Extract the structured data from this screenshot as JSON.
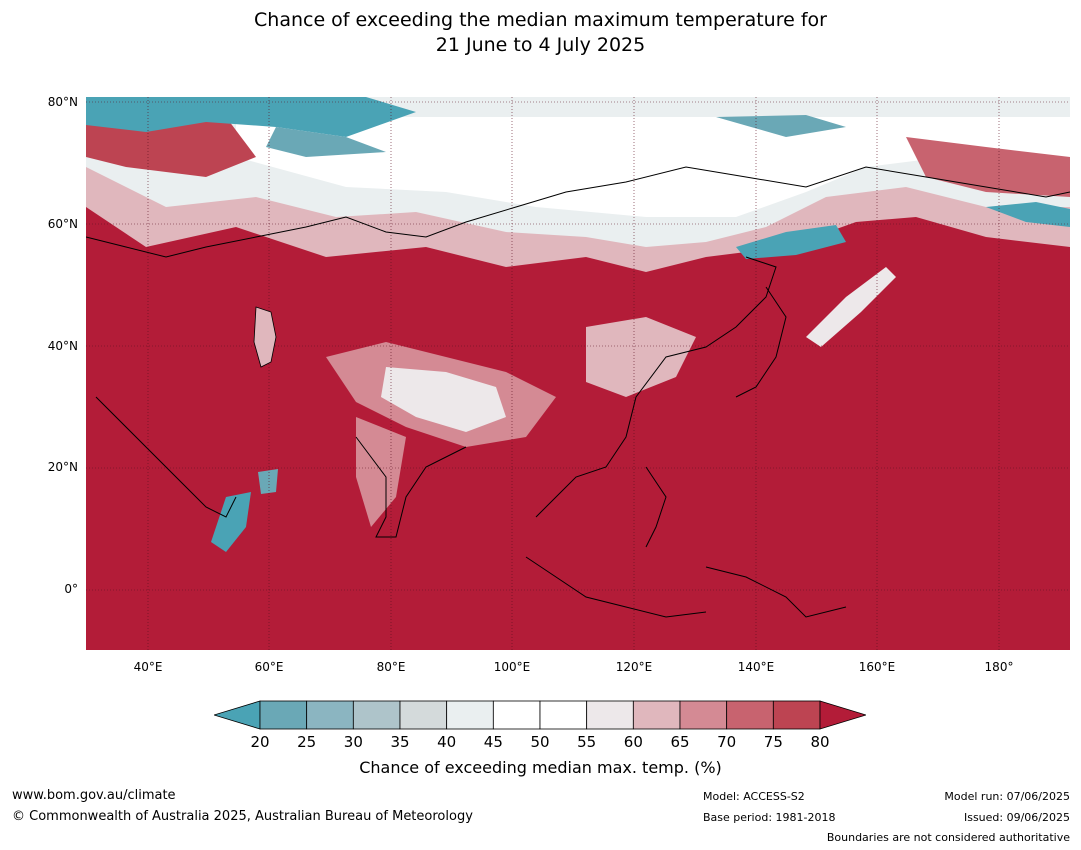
{
  "title_line1": "Chance of exceeding the median maximum temperature for",
  "title_line2": "21 June to 4 July 2025",
  "latitude_labels": [
    "80°N",
    "60°N",
    "40°N",
    "20°N",
    "0°"
  ],
  "longitude_labels": [
    "40°E",
    "60°E",
    "80°E",
    "100°E",
    "120°E",
    "140°E",
    "160°E",
    "180°"
  ],
  "colorbar": {
    "ticks": [
      "20",
      "25",
      "30",
      "35",
      "40",
      "45",
      "50",
      "55",
      "60",
      "65",
      "70",
      "75",
      "80"
    ],
    "colors": [
      "#4aa3b5",
      "#6aa8b6",
      "#8bb5c1",
      "#aec4ca",
      "#d4dadb",
      "#eaeff0",
      "#ffffff",
      "#ffffff",
      "#ede8ea",
      "#e0b7bd",
      "#d48a94",
      "#c8636f",
      "#bd4452",
      "#b31c38"
    ],
    "label": "Chance of exceeding median max. temp. (%)"
  },
  "footer": {
    "url": "www.bom.gov.au/climate",
    "copyright": "© Commonwealth of Australia 2025, Australian Bureau of Meteorology",
    "model": "Model: ACCESS-S2",
    "base_period": "Base period: 1981-2018",
    "model_run": "Model run: 07/06/2025",
    "issued": "Issued: 09/06/2025",
    "disclaimer": "Boundaries are not considered authoritative"
  }
}
